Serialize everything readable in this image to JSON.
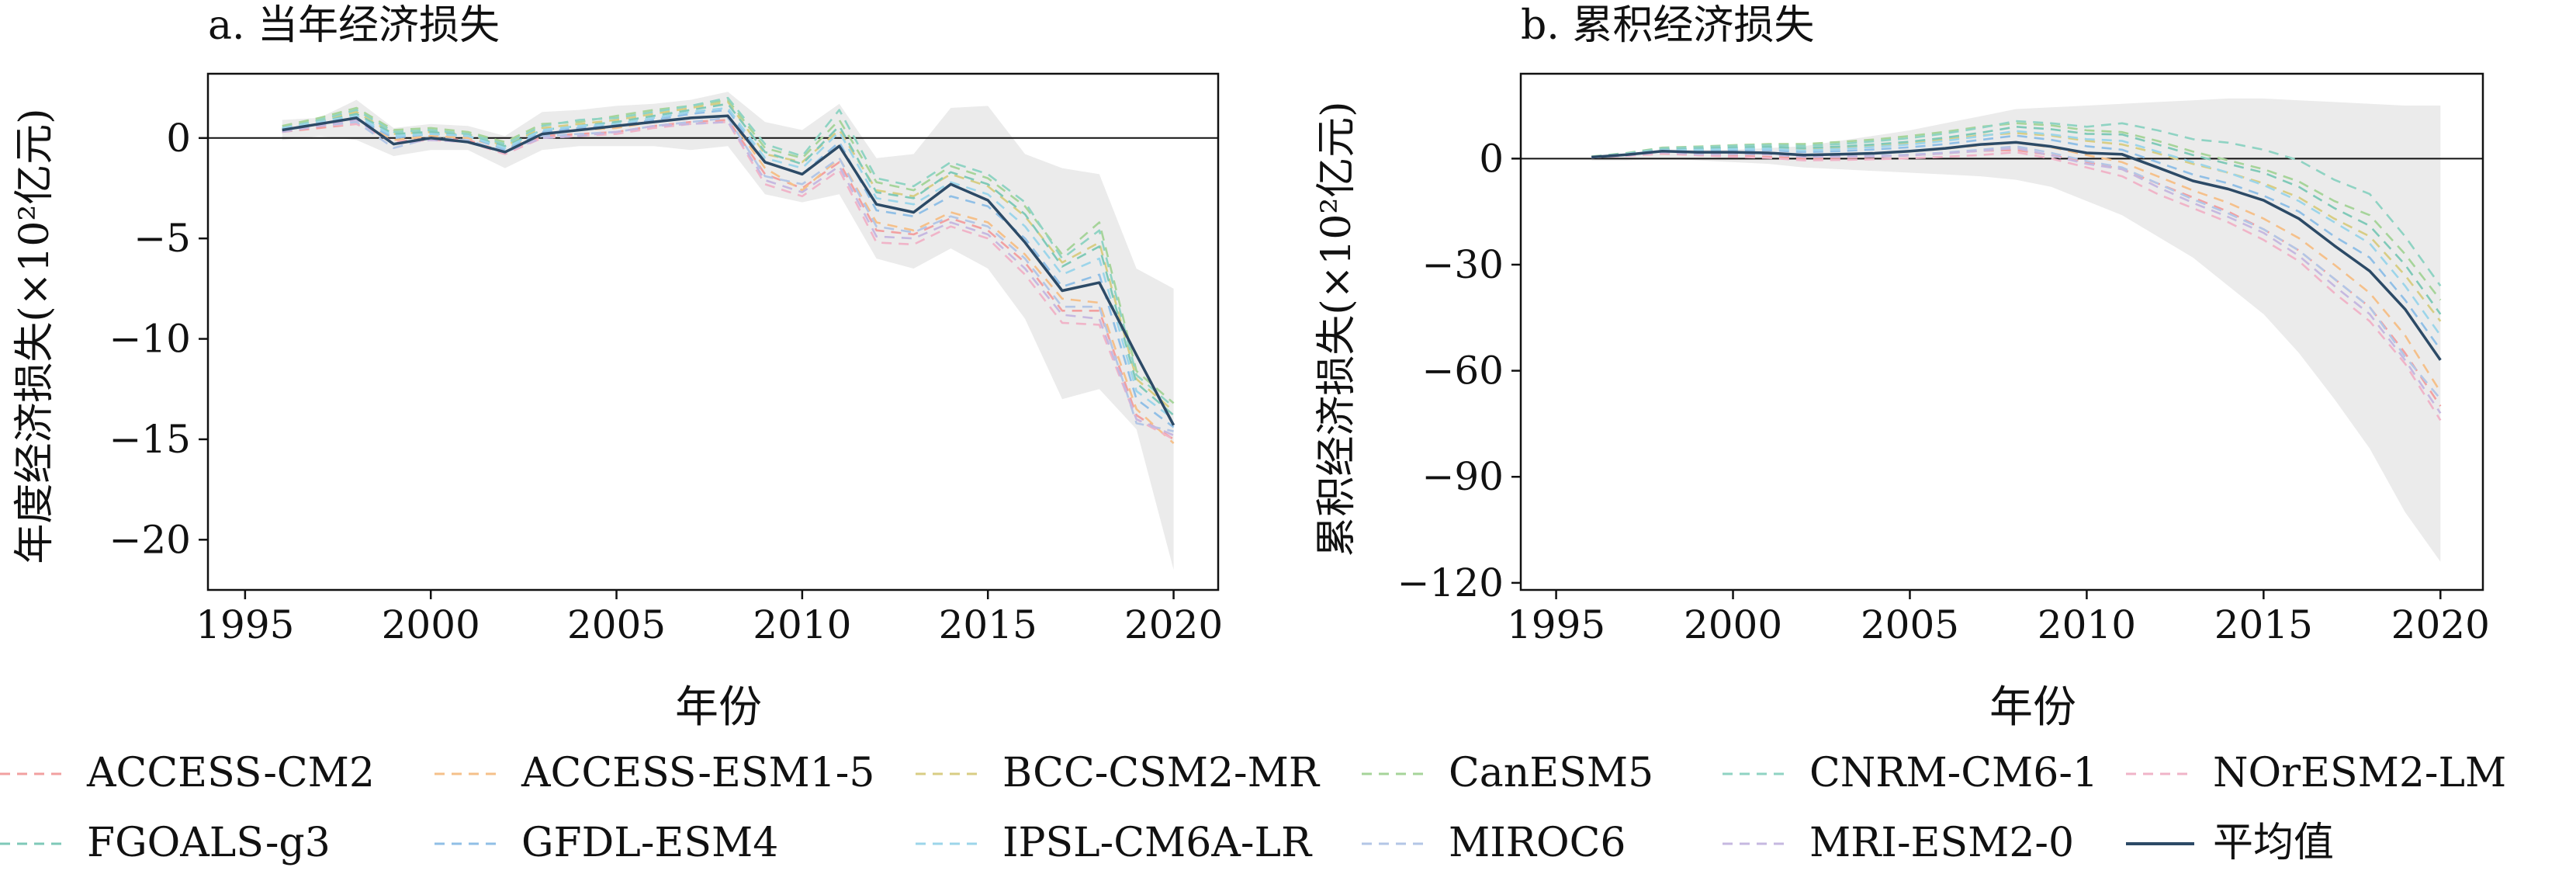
{
  "chart_data": [
    {
      "type": "line",
      "title": "a. 当年经济损失",
      "xlabel": "年份",
      "ylabel": "年度经济损失(×10²亿元)",
      "xlim": [
        1994,
        2021.2
      ],
      "ylim": [
        -22.5,
        3.2
      ],
      "xticks": [
        1995,
        2000,
        2005,
        2010,
        2015,
        2020
      ],
      "yticks": [
        0,
        -5,
        -10,
        -15,
        -20
      ],
      "ytick_labels": [
        "0",
        "−5",
        "−10",
        "−15",
        "−20"
      ],
      "zero_line": true,
      "x": [
        1996,
        1997,
        1998,
        1999,
        2000,
        2001,
        2002,
        2003,
        2004,
        2005,
        2006,
        2007,
        2008,
        2009,
        2010,
        2011,
        2012,
        2013,
        2014,
        2015,
        2016,
        2017,
        2018,
        2019,
        2020
      ],
      "band_upper": [
        0.9,
        1.0,
        1.9,
        0.5,
        0.7,
        0.6,
        0.1,
        1.3,
        1.4,
        1.6,
        1.7,
        1.9,
        2.3,
        0.8,
        0.4,
        1.7,
        -1.0,
        -0.8,
        1.5,
        1.6,
        -0.8,
        -1.5,
        -1.8,
        -6.5,
        -7.5
      ],
      "band_lower": [
        -0.1,
        0.1,
        -0.1,
        -0.9,
        -0.6,
        -0.6,
        -1.5,
        -0.6,
        -0.4,
        -0.4,
        -0.4,
        -0.6,
        -0.4,
        -2.8,
        -3.2,
        -2.8,
        -6.0,
        -6.5,
        -5.5,
        -6.5,
        -9.0,
        -13.0,
        -12.5,
        -14.5,
        -21.5
      ],
      "series": [
        {
          "name": "ACCESS-CM2",
          "color": "#f2a0a0",
          "values": [
            0.3,
            0.5,
            0.7,
            -0.2,
            0.0,
            -0.1,
            -0.7,
            0.1,
            0.2,
            0.3,
            0.6,
            0.8,
            0.9,
            -1.8,
            -2.5,
            -1.2,
            -4.6,
            -4.8,
            -4.0,
            -4.6,
            -6.2,
            -8.6,
            -8.6,
            -13.8,
            -15.0
          ]
        },
        {
          "name": "ACCESS-ESM1-5",
          "color": "#f5c08a",
          "values": [
            0.4,
            0.6,
            1.0,
            -0.1,
            0.1,
            0.0,
            -0.5,
            0.2,
            0.4,
            0.5,
            0.8,
            1.0,
            1.1,
            -1.5,
            -2.6,
            -1.0,
            -4.2,
            -4.6,
            -3.7,
            -4.2,
            -5.8,
            -8.0,
            -8.2,
            -13.5,
            -15.2
          ]
        },
        {
          "name": "BCC-CSM2-MR",
          "color": "#d8cd84",
          "values": [
            0.5,
            0.9,
            1.3,
            0.2,
            0.3,
            0.2,
            -0.4,
            0.5,
            0.7,
            0.9,
            1.2,
            1.5,
            1.8,
            -0.8,
            -1.2,
            0.4,
            -2.6,
            -2.9,
            -1.8,
            -2.4,
            -3.9,
            -6.2,
            -5.2,
            -12.0,
            -13.6
          ]
        },
        {
          "name": "CanESM5",
          "color": "#a6d49a",
          "values": [
            0.6,
            1.0,
            1.5,
            0.4,
            0.5,
            0.3,
            -0.2,
            0.7,
            0.8,
            1.1,
            1.4,
            1.6,
            1.9,
            -0.5,
            -1.0,
            0.9,
            -2.2,
            -2.6,
            -1.4,
            -2.0,
            -3.4,
            -5.8,
            -4.2,
            -11.6,
            -13.2
          ]
        },
        {
          "name": "CNRM-CM6-1",
          "color": "#8fd3c3",
          "values": [
            0.5,
            0.9,
            1.4,
            0.3,
            0.4,
            0.2,
            -0.3,
            0.6,
            0.9,
            1.0,
            1.3,
            1.6,
            2.0,
            -0.3,
            -0.9,
            1.4,
            -2.0,
            -2.4,
            -1.2,
            -1.8,
            -3.2,
            -6.0,
            -4.6,
            -11.8,
            -13.4
          ]
        },
        {
          "name": "NOrESM2-LM",
          "color": "#f0b4c8",
          "values": [
            0.3,
            0.6,
            0.7,
            -0.2,
            -0.1,
            -0.2,
            -0.8,
            0.0,
            0.1,
            0.2,
            0.5,
            0.7,
            0.8,
            -2.3,
            -2.9,
            -1.6,
            -5.2,
            -5.3,
            -4.4,
            -5.0,
            -6.8,
            -9.2,
            -9.3,
            -14.0,
            -15.0
          ]
        },
        {
          "name": "FGOALS-g3",
          "color": "#7fc9b8",
          "values": [
            0.5,
            0.8,
            1.2,
            0.2,
            0.3,
            0.1,
            -0.4,
            0.4,
            0.6,
            0.8,
            1.1,
            1.4,
            1.7,
            -0.7,
            -1.3,
            0.6,
            -2.7,
            -3.0,
            -1.7,
            -2.3,
            -3.8,
            -6.4,
            -5.4,
            -12.2,
            -13.8
          ]
        },
        {
          "name": "GFDL-ESM4",
          "color": "#90bfe6",
          "values": [
            0.4,
            0.7,
            1.0,
            0.0,
            0.2,
            0.1,
            -0.6,
            0.3,
            0.5,
            0.6,
            0.9,
            1.2,
            1.4,
            -1.2,
            -1.8,
            -0.2,
            -3.6,
            -3.9,
            -2.9,
            -3.4,
            -5.0,
            -7.4,
            -6.8,
            -13.0,
            -14.4
          ]
        },
        {
          "name": "IPSL-CM6A-LR",
          "color": "#9cd5ea",
          "values": [
            0.5,
            0.8,
            1.1,
            0.1,
            0.2,
            0.1,
            -0.5,
            0.4,
            0.6,
            0.7,
            1.0,
            1.3,
            1.5,
            -1.0,
            -1.5,
            0.3,
            -3.0,
            -3.3,
            -2.2,
            -2.8,
            -4.4,
            -6.8,
            -6.0,
            -12.6,
            -14.0
          ]
        },
        {
          "name": "MIROC6",
          "color": "#b3c6e6",
          "values": [
            0.4,
            0.6,
            0.8,
            -0.5,
            0.0,
            -0.1,
            -0.7,
            0.1,
            0.2,
            0.3,
            0.6,
            0.8,
            1.0,
            -1.9,
            -2.3,
            -1.0,
            -4.4,
            -4.7,
            -3.9,
            -4.4,
            -6.0,
            -8.4,
            -8.4,
            -14.2,
            -14.6
          ]
        },
        {
          "name": "MRI-ESM2-0",
          "color": "#c6b8e0",
          "values": [
            0.3,
            0.6,
            0.9,
            -0.3,
            -0.1,
            -0.2,
            -0.7,
            0.0,
            0.1,
            0.3,
            0.6,
            0.7,
            0.8,
            -2.1,
            -2.7,
            -1.4,
            -4.9,
            -5.0,
            -4.2,
            -4.8,
            -6.5,
            -8.8,
            -9.0,
            -14.0,
            -14.8
          ]
        },
        {
          "name": "平均值",
          "color": "#2c4a66",
          "values": [
            0.4,
            0.7,
            1.0,
            -0.3,
            0.0,
            -0.2,
            -0.7,
            0.2,
            0.4,
            0.6,
            0.8,
            1.0,
            1.1,
            -1.2,
            -1.8,
            -0.4,
            -3.3,
            -3.7,
            -2.3,
            -3.1,
            -5.2,
            -7.6,
            -7.2,
            -10.8,
            -14.3
          ]
        }
      ]
    },
    {
      "type": "line",
      "title": "b. 累积经济损失",
      "xlabel": "年份",
      "ylabel": "累积经济损失(×10²亿元)",
      "xlim": [
        1994,
        2021.2
      ],
      "ylim": [
        -122,
        24
      ],
      "xticks": [
        1995,
        2000,
        2005,
        2010,
        2015,
        2020
      ],
      "yticks": [
        0,
        -30,
        -60,
        -90,
        -120
      ],
      "ytick_labels": [
        "0",
        "−30",
        "−60",
        "−90",
        "−120"
      ],
      "zero_line": true,
      "x": [
        1996,
        1997,
        1998,
        1999,
        2000,
        2001,
        2002,
        2003,
        2004,
        2005,
        2006,
        2007,
        2008,
        2009,
        2010,
        2011,
        2012,
        2013,
        2014,
        2015,
        2016,
        2017,
        2018,
        2019,
        2020
      ],
      "band_upper": [
        0.5,
        1.5,
        2.5,
        2.5,
        2.5,
        3.0,
        3.5,
        5.0,
        6.5,
        8.0,
        10.0,
        12.0,
        14.0,
        14.5,
        15.0,
        15.5,
        16.0,
        16.5,
        17.0,
        17.0,
        16.5,
        16.0,
        15.5,
        15.0,
        15.0
      ],
      "band_lower": [
        -0.5,
        -0.5,
        0.0,
        -0.5,
        -1.0,
        -1.5,
        -2.5,
        -3.0,
        -3.5,
        -4.0,
        -4.5,
        -5.0,
        -6.0,
        -8.0,
        -12.0,
        -16.0,
        -22.0,
        -28.0,
        -36.0,
        -44.0,
        -55.0,
        -68.0,
        -82.0,
        -100.0,
        -114.0
      ],
      "series": [
        {
          "name": "ACCESS-CM2",
          "color": "#f2a0a0",
          "values": [
            0.3,
            0.8,
            1.4,
            1.0,
            0.8,
            0.5,
            0.0,
            0.2,
            0.5,
            0.9,
            1.5,
            2.2,
            2.4,
            1.0,
            -1.0,
            -3.0,
            -7.0,
            -11.0,
            -15.0,
            -20.0,
            -26.0,
            -34.0,
            -42.0,
            -55.0,
            -70.0
          ]
        },
        {
          "name": "ACCESS-ESM1-5",
          "color": "#f5c08a",
          "values": [
            0.4,
            1.0,
            1.8,
            1.5,
            1.4,
            1.2,
            0.8,
            1.1,
            1.5,
            2.0,
            2.8,
            3.8,
            4.5,
            3.2,
            1.0,
            -1.0,
            -5.0,
            -9.0,
            -12.5,
            -17.0,
            -22.5,
            -30.0,
            -38.0,
            -50.0,
            -66.0
          ]
        },
        {
          "name": "BCC-CSM2-MR",
          "color": "#d8cd84",
          "values": [
            0.5,
            1.4,
            2.6,
            2.6,
            2.8,
            2.9,
            2.8,
            3.2,
            3.7,
            4.4,
            5.4,
            6.6,
            7.2,
            6.5,
            5.0,
            4.0,
            1.5,
            -1.5,
            -4.0,
            -7.0,
            -11.0,
            -17.0,
            -22.0,
            -33.0,
            -46.0
          ]
        },
        {
          "name": "CanESM5",
          "color": "#a6d49a",
          "values": [
            0.6,
            1.6,
            3.1,
            3.4,
            3.8,
            4.1,
            4.1,
            4.7,
            5.4,
            6.4,
            7.6,
            9.0,
            10.0,
            9.4,
            8.0,
            7.5,
            5.0,
            2.0,
            -0.5,
            -3.0,
            -6.5,
            -12.0,
            -16.0,
            -27.0,
            -40.0
          ]
        },
        {
          "name": "CNRM-CM6-1",
          "color": "#8fd3c3",
          "values": [
            0.5,
            1.5,
            2.9,
            3.2,
            3.6,
            3.8,
            3.6,
            4.1,
            4.9,
            5.8,
            7.1,
            8.7,
            10.6,
            10.0,
            9.0,
            10.0,
            8.0,
            5.5,
            4.5,
            2.5,
            -0.5,
            -6.0,
            -10.0,
            -22.0,
            -36.0
          ]
        },
        {
          "name": "NOrESM2-LM",
          "color": "#f0b4c8",
          "values": [
            0.3,
            0.8,
            1.5,
            1.0,
            0.5,
            0.2,
            -0.5,
            -0.4,
            -0.2,
            0.1,
            0.5,
            1.0,
            1.8,
            0.0,
            -2.5,
            -5.0,
            -10.0,
            -14.0,
            -18.0,
            -23.0,
            -29.0,
            -38.0,
            -46.0,
            -58.0,
            -74.0
          ]
        },
        {
          "name": "FGOALS-g3",
          "color": "#7fc9b8",
          "values": [
            0.5,
            1.3,
            2.5,
            2.8,
            3.1,
            3.3,
            3.0,
            3.4,
            4.0,
            4.8,
            5.9,
            7.3,
            9.0,
            8.3,
            7.0,
            6.8,
            4.0,
            1.0,
            -1.5,
            -4.0,
            -8.0,
            -14.0,
            -19.0,
            -30.0,
            -44.0
          ]
        },
        {
          "name": "GFDL-ESM4",
          "color": "#90bfe6",
          "values": [
            0.4,
            1.1,
            2.1,
            2.1,
            2.3,
            2.4,
            1.8,
            2.1,
            2.6,
            3.2,
            4.1,
            5.3,
            6.5,
            5.3,
            3.5,
            2.5,
            -1.0,
            -4.5,
            -7.0,
            -10.5,
            -15.0,
            -22.0,
            -28.0,
            -40.0,
            -54.0
          ]
        },
        {
          "name": "IPSL-CM6A-LR",
          "color": "#9cd5ea",
          "values": [
            0.5,
            1.3,
            2.4,
            2.5,
            2.7,
            2.8,
            2.3,
            2.7,
            3.3,
            4.0,
            5.0,
            6.3,
            7.8,
            6.8,
            5.5,
            5.0,
            2.0,
            -1.0,
            -4.0,
            -7.5,
            -12.0,
            -18.0,
            -24.0,
            -36.0,
            -50.0
          ]
        },
        {
          "name": "MIROC6",
          "color": "#b3c6e6",
          "values": [
            0.4,
            1.0,
            1.8,
            1.3,
            1.3,
            1.2,
            0.5,
            0.6,
            0.8,
            1.1,
            1.7,
            2.5,
            3.5,
            1.6,
            -0.7,
            -2.5,
            -7.0,
            -11.5,
            -15.5,
            -20.0,
            -26.0,
            -34.0,
            -42.0,
            -56.0,
            -68.0
          ]
        },
        {
          "name": "MRI-ESM2-0",
          "color": "#c6b8e0",
          "values": [
            0.3,
            0.9,
            1.8,
            1.5,
            1.4,
            1.2,
            0.5,
            0.5,
            0.6,
            0.9,
            1.5,
            2.2,
            3.0,
            0.9,
            -1.5,
            -3.0,
            -8.0,
            -12.5,
            -16.5,
            -21.0,
            -27.5,
            -36.0,
            -44.0,
            -57.0,
            -72.0
          ]
        },
        {
          "name": "平均值",
          "color": "#2c4a66",
          "values": [
            0.4,
            1.1,
            2.1,
            1.8,
            1.8,
            1.6,
            1.0,
            1.2,
            1.5,
            2.1,
            2.9,
            4.0,
            4.6,
            3.4,
            1.6,
            1.2,
            -2.5,
            -6.3,
            -8.6,
            -11.8,
            -17.0,
            -24.6,
            -31.8,
            -42.6,
            -57.0
          ]
        }
      ]
    }
  ],
  "legend": {
    "placement": "bottom",
    "items": [
      {
        "label": "ACCESS-CM2",
        "color": "#f2a0a0",
        "style": "dashed"
      },
      {
        "label": "ACCESS-ESM1-5",
        "color": "#f5c08a",
        "style": "dashed"
      },
      {
        "label": "BCC-CSM2-MR",
        "color": "#d8cd84",
        "style": "dashed"
      },
      {
        "label": "CanESM5",
        "color": "#a6d49a",
        "style": "dashed"
      },
      {
        "label": "CNRM-CM6-1",
        "color": "#8fd3c3",
        "style": "dashed"
      },
      {
        "label": "NOrESM2-LM",
        "color": "#f0b4c8",
        "style": "dashed"
      },
      {
        "label": "FGOALS-g3",
        "color": "#7fc9b8",
        "style": "dashed"
      },
      {
        "label": "GFDL-ESM4",
        "color": "#90bfe6",
        "style": "dashed"
      },
      {
        "label": "IPSL-CM6A-LR",
        "color": "#9cd5ea",
        "style": "dashed"
      },
      {
        "label": "MIROC6",
        "color": "#b3c6e6",
        "style": "dashed"
      },
      {
        "label": "MRI-ESM2-0",
        "color": "#c6b8e0",
        "style": "dashed"
      },
      {
        "label": "平均值",
        "color": "#2c4a66",
        "style": "solid"
      }
    ]
  },
  "colors": {
    "band": "#ebebeb",
    "axis": "#111111"
  }
}
